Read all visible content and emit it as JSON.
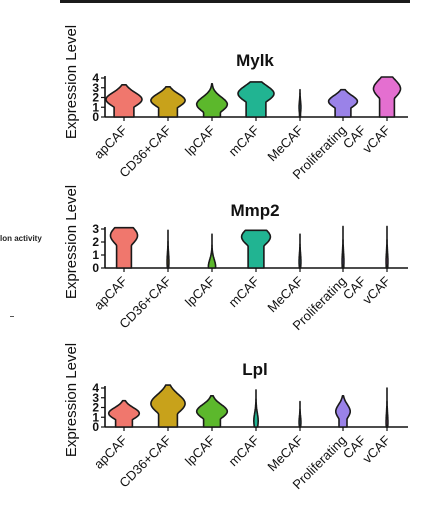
{
  "side_text": "lon activity",
  "chart_data": [
    {
      "type": "violin",
      "title": "Mylk",
      "ylabel": "Expression Level",
      "ylim": [
        0,
        4
      ],
      "yticks": [
        0,
        1,
        2,
        3,
        4
      ],
      "categories": [
        "apCAF",
        "CD36+CAF",
        "lpCAF",
        "mCAF",
        "MeCAF",
        "Proliferating CAF",
        "vCAF"
      ],
      "colors": [
        "#f0776d",
        "#c8a21b",
        "#5cb82c",
        "#21b492",
        "#2a9ccf",
        "#9a82e8",
        "#e46fd0"
      ],
      "series": [
        {
          "category": "apCAF",
          "max": 3.3,
          "peak": 1.8,
          "width": 1.0
        },
        {
          "category": "CD36+CAF",
          "max": 3.1,
          "peak": 1.7,
          "width": 0.95
        },
        {
          "category": "lpCAF",
          "max": 3.4,
          "peak": 1.3,
          "width": 0.85
        },
        {
          "category": "mCAF",
          "max": 3.6,
          "peak": 2.4,
          "width": 1.0
        },
        {
          "category": "MeCAF",
          "max": 2.8,
          "peak": 1.0,
          "width": 0.04
        },
        {
          "category": "Proliferating CAF",
          "max": 2.8,
          "peak": 1.6,
          "width": 0.8
        },
        {
          "category": "vCAF",
          "max": 4.1,
          "peak": 2.9,
          "width": 0.75
        }
      ]
    },
    {
      "type": "violin",
      "title": "Mmp2",
      "ylabel": "Expression Level",
      "ylim": [
        0,
        3
      ],
      "yticks": [
        0,
        1,
        2,
        3
      ],
      "categories": [
        "apCAF",
        "CD36+CAF",
        "lpCAF",
        "mCAF",
        "MeCAF",
        "Proliferating CAF",
        "vCAF"
      ],
      "colors": [
        "#f0776d",
        "#c8a21b",
        "#5cb82c",
        "#21b492",
        "#2a9ccf",
        "#9a82e8",
        "#e46fd0"
      ],
      "series": [
        {
          "category": "apCAF",
          "max": 3.1,
          "peak": 2.5,
          "width": 0.75
        },
        {
          "category": "CD36+CAF",
          "max": 2.9,
          "peak": 0.5,
          "width": 0.05
        },
        {
          "category": "lpCAF",
          "max": 2.6,
          "peak": 0.1,
          "width": 0.2
        },
        {
          "category": "mCAF",
          "max": 2.9,
          "peak": 2.4,
          "width": 0.8
        },
        {
          "category": "MeCAF",
          "max": 2.6,
          "peak": 0.5,
          "width": 0.04
        },
        {
          "category": "Proliferating CAF",
          "max": 3.2,
          "peak": 0.5,
          "width": 0.05
        },
        {
          "category": "vCAF",
          "max": 3.2,
          "peak": 0.5,
          "width": 0.05
        }
      ]
    },
    {
      "type": "violin",
      "title": "Lpl",
      "ylabel": "Expression Level",
      "ylim": [
        0,
        4
      ],
      "yticks": [
        0,
        1,
        2,
        3,
        4
      ],
      "categories": [
        "apCAF",
        "CD36+CAF",
        "lpCAF",
        "mCAF",
        "MeCAF",
        "Proliferating CAF",
        "vCAF"
      ],
      "colors": [
        "#f0776d",
        "#c8a21b",
        "#5cb82c",
        "#21b492",
        "#2a9ccf",
        "#9a82e8",
        "#e46fd0"
      ],
      "series": [
        {
          "category": "apCAF",
          "max": 2.7,
          "peak": 1.4,
          "width": 0.85
        },
        {
          "category": "CD36+CAF",
          "max": 4.3,
          "peak": 2.4,
          "width": 0.95
        },
        {
          "category": "lpCAF",
          "max": 3.2,
          "peak": 1.6,
          "width": 0.85
        },
        {
          "category": "mCAF",
          "max": 3.8,
          "peak": 0.6,
          "width": 0.12
        },
        {
          "category": "MeCAF",
          "max": 2.6,
          "peak": 0.5,
          "width": 0.04
        },
        {
          "category": "Proliferating CAF",
          "max": 3.2,
          "peak": 1.6,
          "width": 0.4
        },
        {
          "category": "vCAF",
          "max": 4.0,
          "peak": 0.5,
          "width": 0.05
        }
      ]
    }
  ]
}
